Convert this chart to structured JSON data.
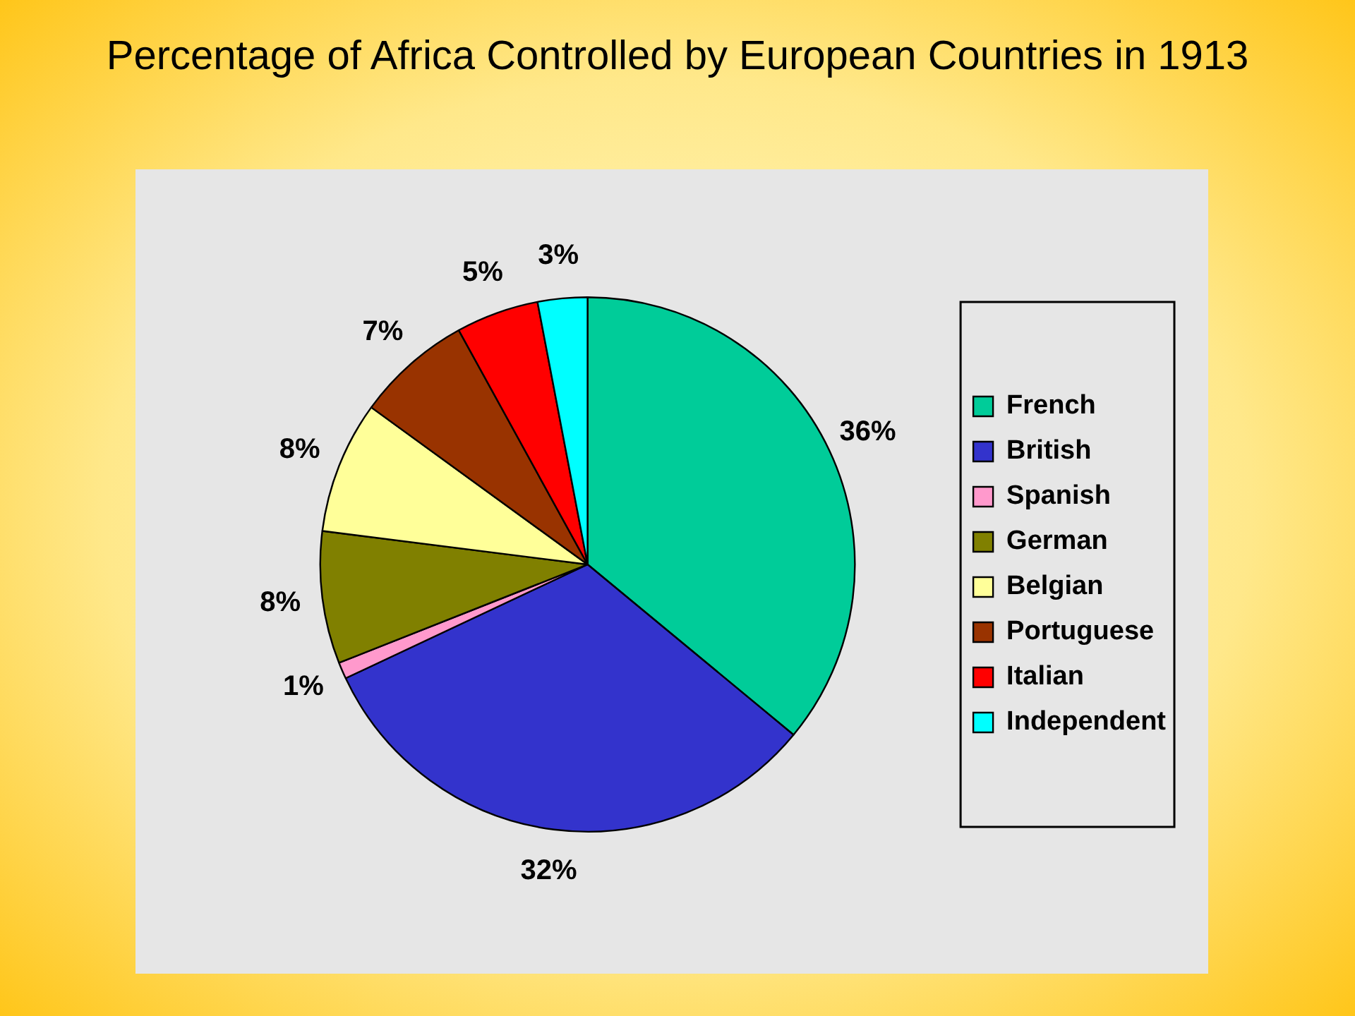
{
  "chart_data": {
    "type": "pie",
    "title": "Percentage of Africa Controlled by European Countries in 1913",
    "categories": [
      "French",
      "British",
      "Spanish",
      "German",
      "Belgian",
      "Portuguese",
      "Italian",
      "Independent"
    ],
    "values": [
      36,
      32,
      1,
      8,
      8,
      7,
      5,
      3
    ],
    "value_labels": [
      "36%",
      "32%",
      "1%",
      "8%",
      "8%",
      "7%",
      "5%",
      "3%"
    ],
    "colors": [
      "#00cc99",
      "#3333cc",
      "#ff99cc",
      "#808000",
      "#ffff99",
      "#993300",
      "#ff0000",
      "#00ffff"
    ],
    "legend": "right"
  }
}
